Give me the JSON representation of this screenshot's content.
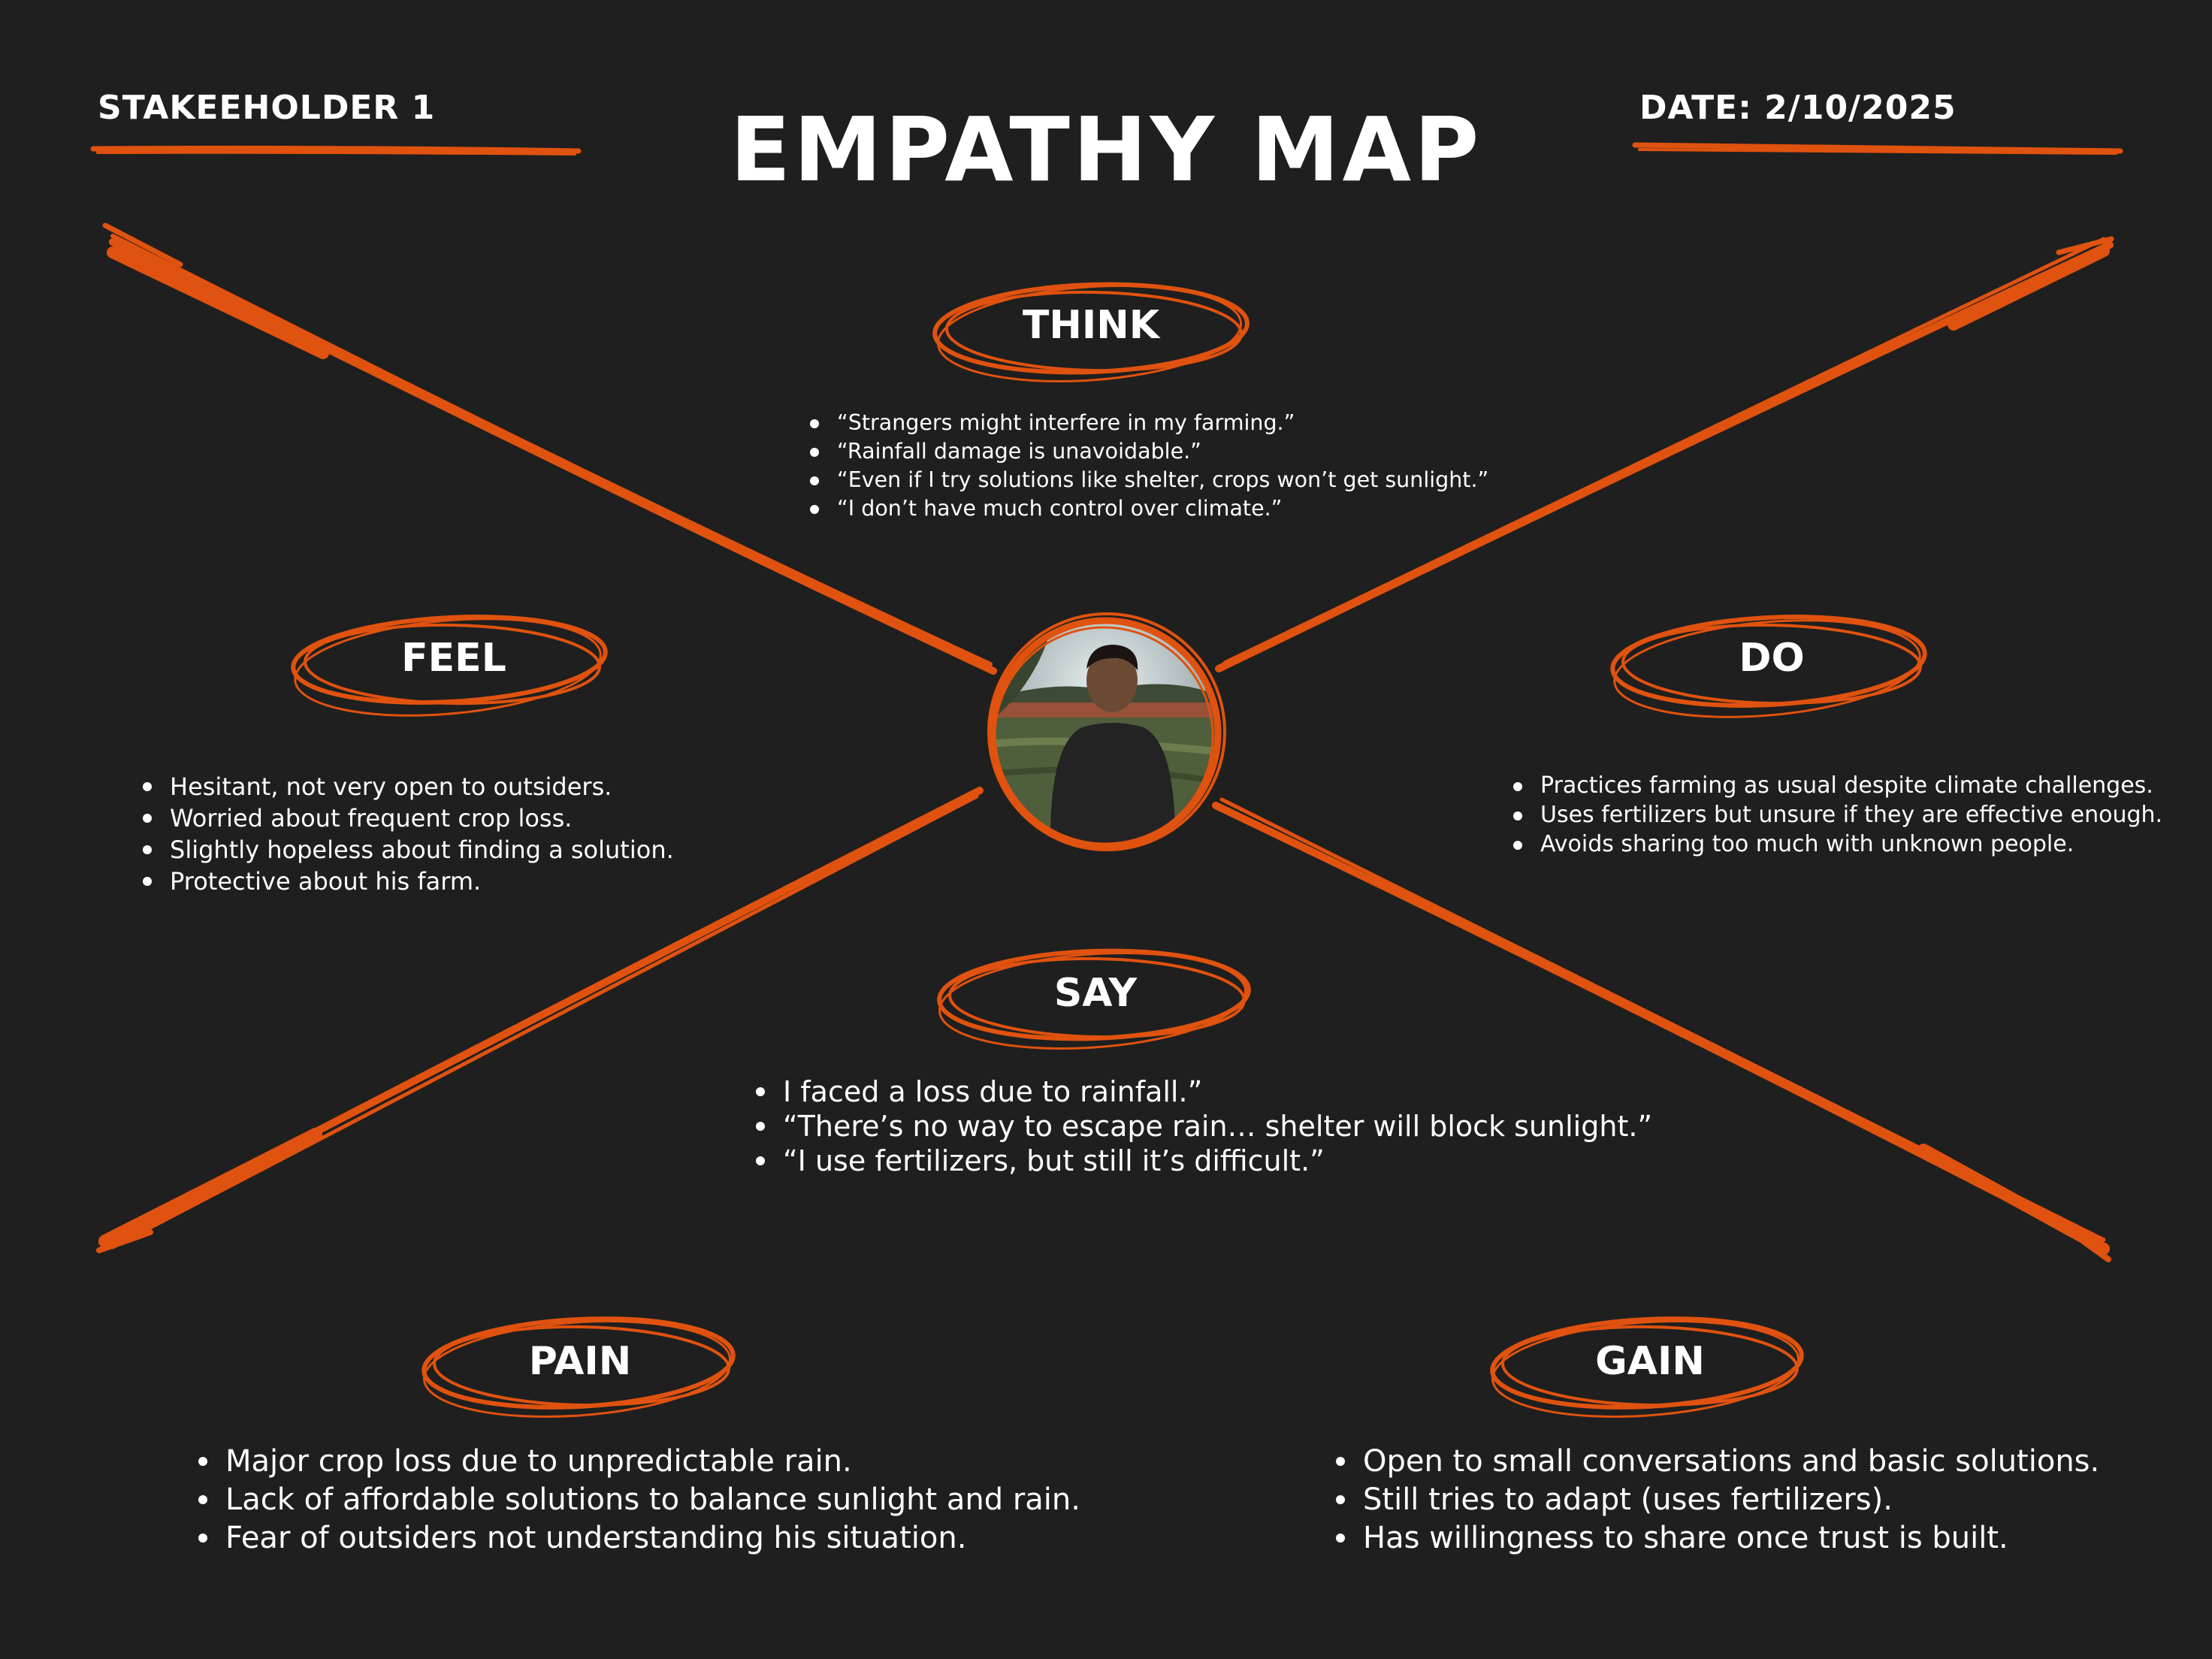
{
  "header": {
    "stakeholder": "STAKEEHOLDER 1",
    "title": "EMPATHY MAP",
    "date": "DATE: 2/10/2025"
  },
  "colors": {
    "background": "#1f1f1f",
    "accent": "#e0520f",
    "text": "#ffffff"
  },
  "avatar": {
    "alt": "stakeholder photo"
  },
  "sections": {
    "think": {
      "label": "THINK",
      "items": [
        "“Strangers might interfere in my farming.”",
        "“Rainfall damage is unavoidable.”",
        "“Even if I try solutions like shelter, crops won’t get sunlight.”",
        "“I don’t have much control over climate.”"
      ]
    },
    "feel": {
      "label": "FEEL",
      "items": [
        "Hesitant, not very open to outsiders.",
        "Worried about frequent crop loss.",
        "Slightly hopeless about finding a solution.",
        "Protective about his farm."
      ]
    },
    "do": {
      "label": "DO",
      "items": [
        "Practices farming as usual despite climate challenges.",
        "Uses fertilizers but unsure if they are effective enough.",
        "Avoids sharing too much with unknown people."
      ]
    },
    "say": {
      "label": "SAY",
      "items": [
        "I faced a loss due to rainfall.”",
        "“There’s no way to escape rain… shelter will block sunlight.”",
        "“I use fertilizers, but still it’s difficult.”"
      ]
    },
    "pain": {
      "label": "PAIN",
      "items": [
        "Major crop loss due to unpredictable rain.",
        "Lack of affordable solutions to balance sunlight and rain.",
        "Fear of outsiders not understanding his situation."
      ]
    },
    "gain": {
      "label": "GAIN",
      "items": [
        "Open to small conversations and basic solutions.",
        "Still tries to adapt (uses fertilizers).",
        "Has willingness to share once trust is built."
      ]
    }
  }
}
